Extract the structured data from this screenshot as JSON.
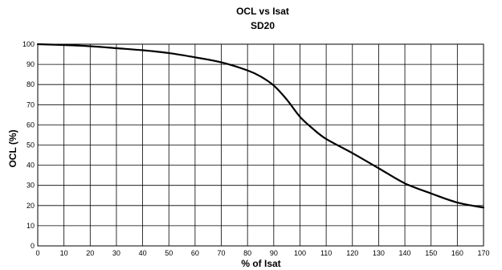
{
  "chart_data": {
    "type": "line",
    "title": "OCL vs Isat",
    "subtitle": "SD20",
    "xlabel": "% of Isat",
    "ylabel": "OCL (%)",
    "xlim": [
      0,
      170
    ],
    "ylim": [
      0,
      100
    ],
    "xticks": [
      0,
      10,
      20,
      30,
      40,
      50,
      60,
      70,
      80,
      90,
      100,
      110,
      120,
      130,
      140,
      150,
      160,
      170
    ],
    "yticks": [
      0,
      10,
      20,
      30,
      40,
      50,
      60,
      70,
      80,
      90,
      100
    ],
    "grid": true,
    "series": [
      {
        "x": [
          0,
          10,
          20,
          30,
          40,
          50,
          60,
          70,
          80,
          85,
          90,
          95,
          100,
          105,
          110,
          120,
          130,
          140,
          150,
          160,
          170
        ],
        "y": [
          100,
          99.6,
          99,
          98,
          97,
          95.6,
          93.5,
          91,
          87,
          84,
          79.5,
          72.5,
          64,
          58,
          53,
          46,
          38.5,
          31,
          26,
          21.5,
          19
        ]
      }
    ]
  }
}
